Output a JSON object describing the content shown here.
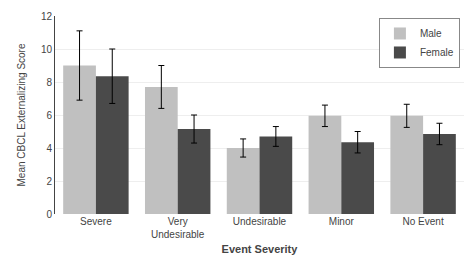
{
  "chart_data": {
    "type": "bar",
    "categories": [
      "Severe",
      "Very\nUndesirable",
      "Undesirable",
      "Minor",
      "No Event"
    ],
    "series": [
      {
        "name": "Male",
        "color": "#c0c0c0",
        "values": [
          9.0,
          7.7,
          4.0,
          5.95,
          5.95
        ],
        "errors": [
          2.1,
          1.3,
          0.55,
          0.65,
          0.7
        ]
      },
      {
        "name": "Female",
        "color": "#4a4a4a",
        "values": [
          8.35,
          5.15,
          4.7,
          4.35,
          4.85
        ],
        "errors": [
          1.65,
          0.85,
          0.6,
          0.65,
          0.65
        ]
      }
    ],
    "xlabel": "Event Severity",
    "ylabel": "Mean CBCL Externalizing Score",
    "ylim": [
      0,
      12
    ],
    "yticks": [
      0,
      2,
      4,
      6,
      8,
      10,
      12
    ],
    "grid": true,
    "legend": "upper right"
  }
}
